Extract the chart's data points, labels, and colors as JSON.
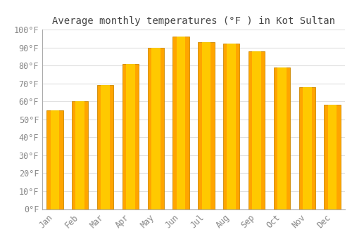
{
  "title": "Average monthly temperatures (°F ) in Kot Sultan",
  "months": [
    "Jan",
    "Feb",
    "Mar",
    "Apr",
    "May",
    "Jun",
    "Jul",
    "Aug",
    "Sep",
    "Oct",
    "Nov",
    "Dec"
  ],
  "values": [
    55,
    60,
    69,
    81,
    90,
    96,
    93,
    92,
    88,
    79,
    68,
    58
  ],
  "bar_color_main": "#FFA500",
  "bar_color_light": "#FFD000",
  "bar_edge_color": "#CC8800",
  "background_color": "#FFFFFF",
  "grid_color": "#E0E0E0",
  "ylim": [
    0,
    100
  ],
  "yticks": [
    0,
    10,
    20,
    30,
    40,
    50,
    60,
    70,
    80,
    90,
    100
  ],
  "ytick_labels": [
    "0°F",
    "10°F",
    "20°F",
    "30°F",
    "40°F",
    "50°F",
    "60°F",
    "70°F",
    "80°F",
    "90°F",
    "100°F"
  ],
  "title_fontsize": 10,
  "tick_fontsize": 8.5,
  "tick_color": "#888888",
  "bar_width": 0.65
}
